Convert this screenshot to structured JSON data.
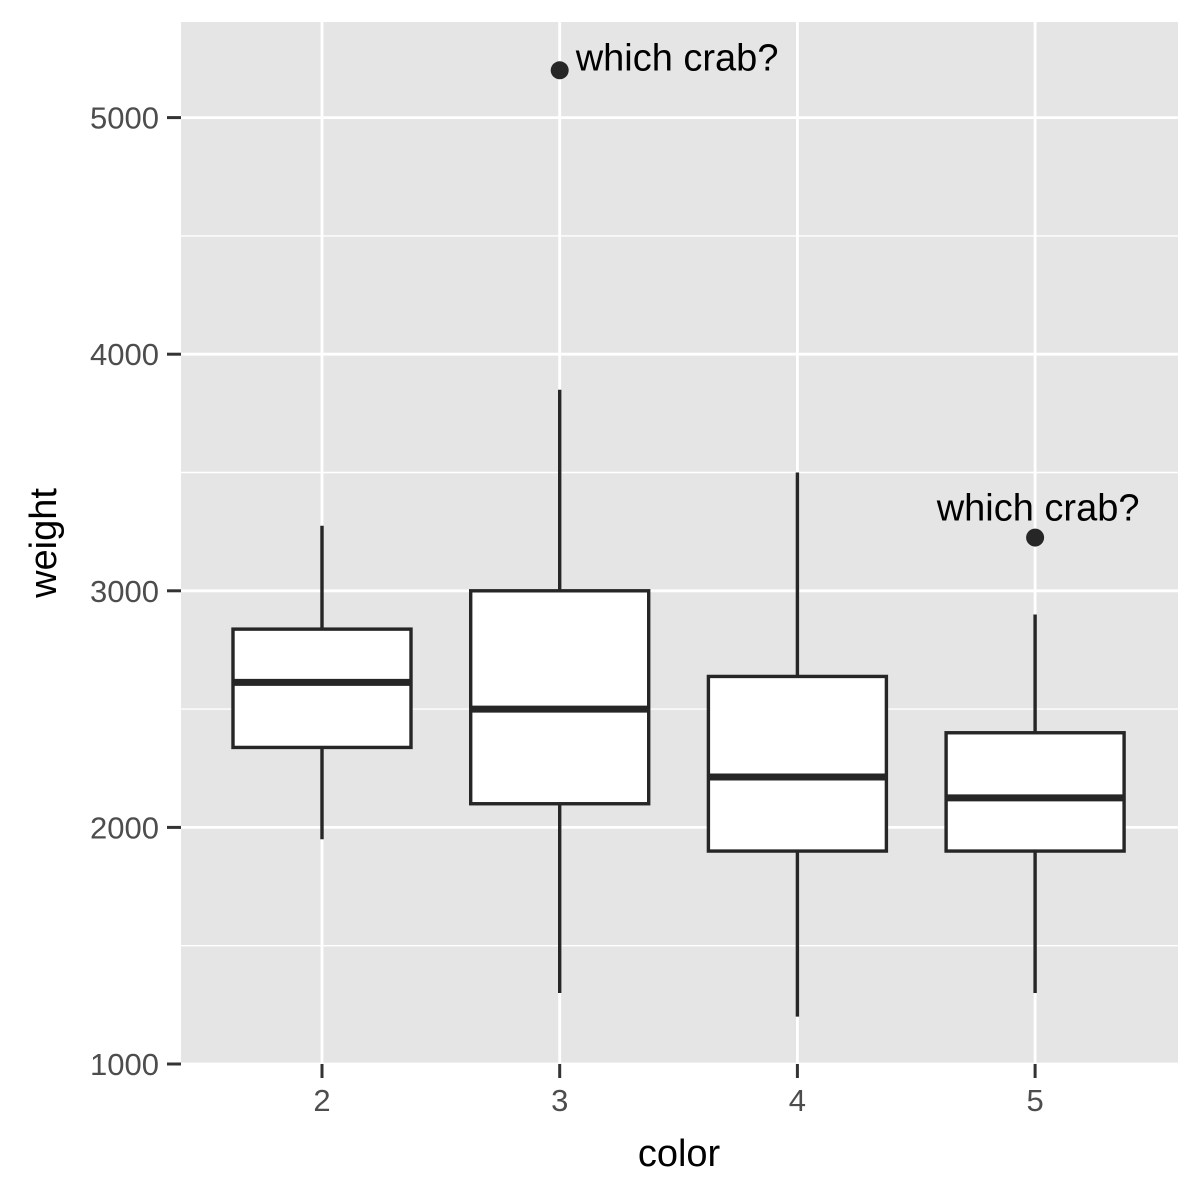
{
  "chart_data": {
    "type": "boxplot",
    "title": "",
    "xlabel": "color",
    "ylabel": "weight",
    "categories": [
      "2",
      "3",
      "4",
      "5"
    ],
    "y_ticks": [
      1000,
      2000,
      3000,
      4000,
      5000
    ],
    "ylim": [
      1000,
      5400
    ],
    "grid": true,
    "legend": "none",
    "boxes": [
      {
        "category": "2",
        "whisker_low": 1950,
        "q1": 2338,
        "median": 2613,
        "q3": 2838,
        "whisker_high": 3275,
        "outliers": []
      },
      {
        "category": "3",
        "whisker_low": 1300,
        "q1": 2100,
        "median": 2500,
        "q3": 3000,
        "whisker_high": 3850,
        "outliers": [
          5200
        ]
      },
      {
        "category": "4",
        "whisker_low": 1200,
        "q1": 1900,
        "median": 2213,
        "q3": 2638,
        "whisker_high": 3500,
        "outliers": []
      },
      {
        "category": "5",
        "whisker_low": 1300,
        "q1": 1900,
        "median": 2125,
        "q3": 2400,
        "whisker_high": 2900,
        "outliers": [
          3225
        ]
      }
    ],
    "annotations": [
      {
        "category": "3",
        "y": 5200,
        "text": "which crab?",
        "align": "left"
      },
      {
        "category": "5",
        "y": 3225,
        "text": "which crab?",
        "align": "above"
      }
    ],
    "colors": {
      "panel_background": "#e5e5e5",
      "grid_line": "#ffffff",
      "box_fill": "#ffffff",
      "box_stroke": "#262626",
      "point": "#262626",
      "tick": "#333333"
    }
  }
}
